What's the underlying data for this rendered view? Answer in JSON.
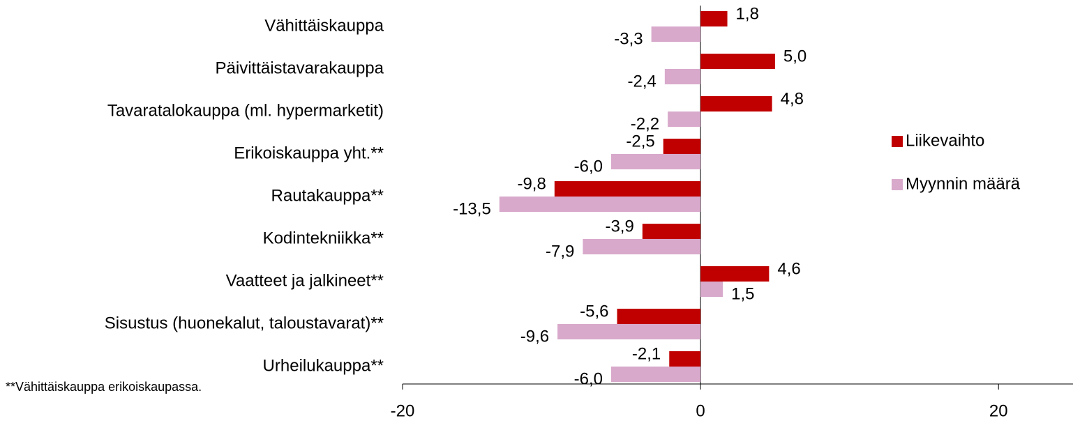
{
  "chart_data": {
    "type": "bar",
    "orientation": "horizontal",
    "categories": [
      "Vähittäiskauppa",
      "Päivittäistavarakauppa",
      "Tavaratalokauppa (ml. hypermarketit)",
      "Erikoiskauppa yht.**",
      "Rautakauppa**",
      "Kodintekniikka**",
      "Vaatteet ja jalkineet**",
      "Sisustus (huonekalut, taloustavarat)**",
      "Urheilukauppa**"
    ],
    "series": [
      {
        "name": "Liikevaihto",
        "color": "#c00000",
        "values": [
          1.8,
          5.0,
          4.8,
          -2.5,
          -9.8,
          -3.9,
          4.6,
          -5.6,
          -2.1
        ],
        "value_labels": [
          "1,8",
          "5,0",
          "4,8",
          "-2,5",
          "-9,8",
          "-3,9",
          "4,6",
          "-5,6",
          "-2,1"
        ]
      },
      {
        "name": "Myynnin määrä",
        "color": "#d8a9cb",
        "values": [
          -3.3,
          -2.4,
          -2.2,
          -6.0,
          -13.5,
          -7.9,
          1.5,
          -9.6,
          -6.0
        ],
        "value_labels": [
          "-3,3",
          "-2,4",
          "-2,2",
          "-6,0",
          "-13,5",
          "-7,9",
          "1,5",
          "-9,6",
          "-6,0"
        ]
      }
    ],
    "xlim": [
      -20,
      25
    ],
    "xticks": [
      -20,
      0,
      20
    ],
    "legend": "right",
    "footnote": "**Vähittäiskauppa erikoiskaupassa."
  }
}
